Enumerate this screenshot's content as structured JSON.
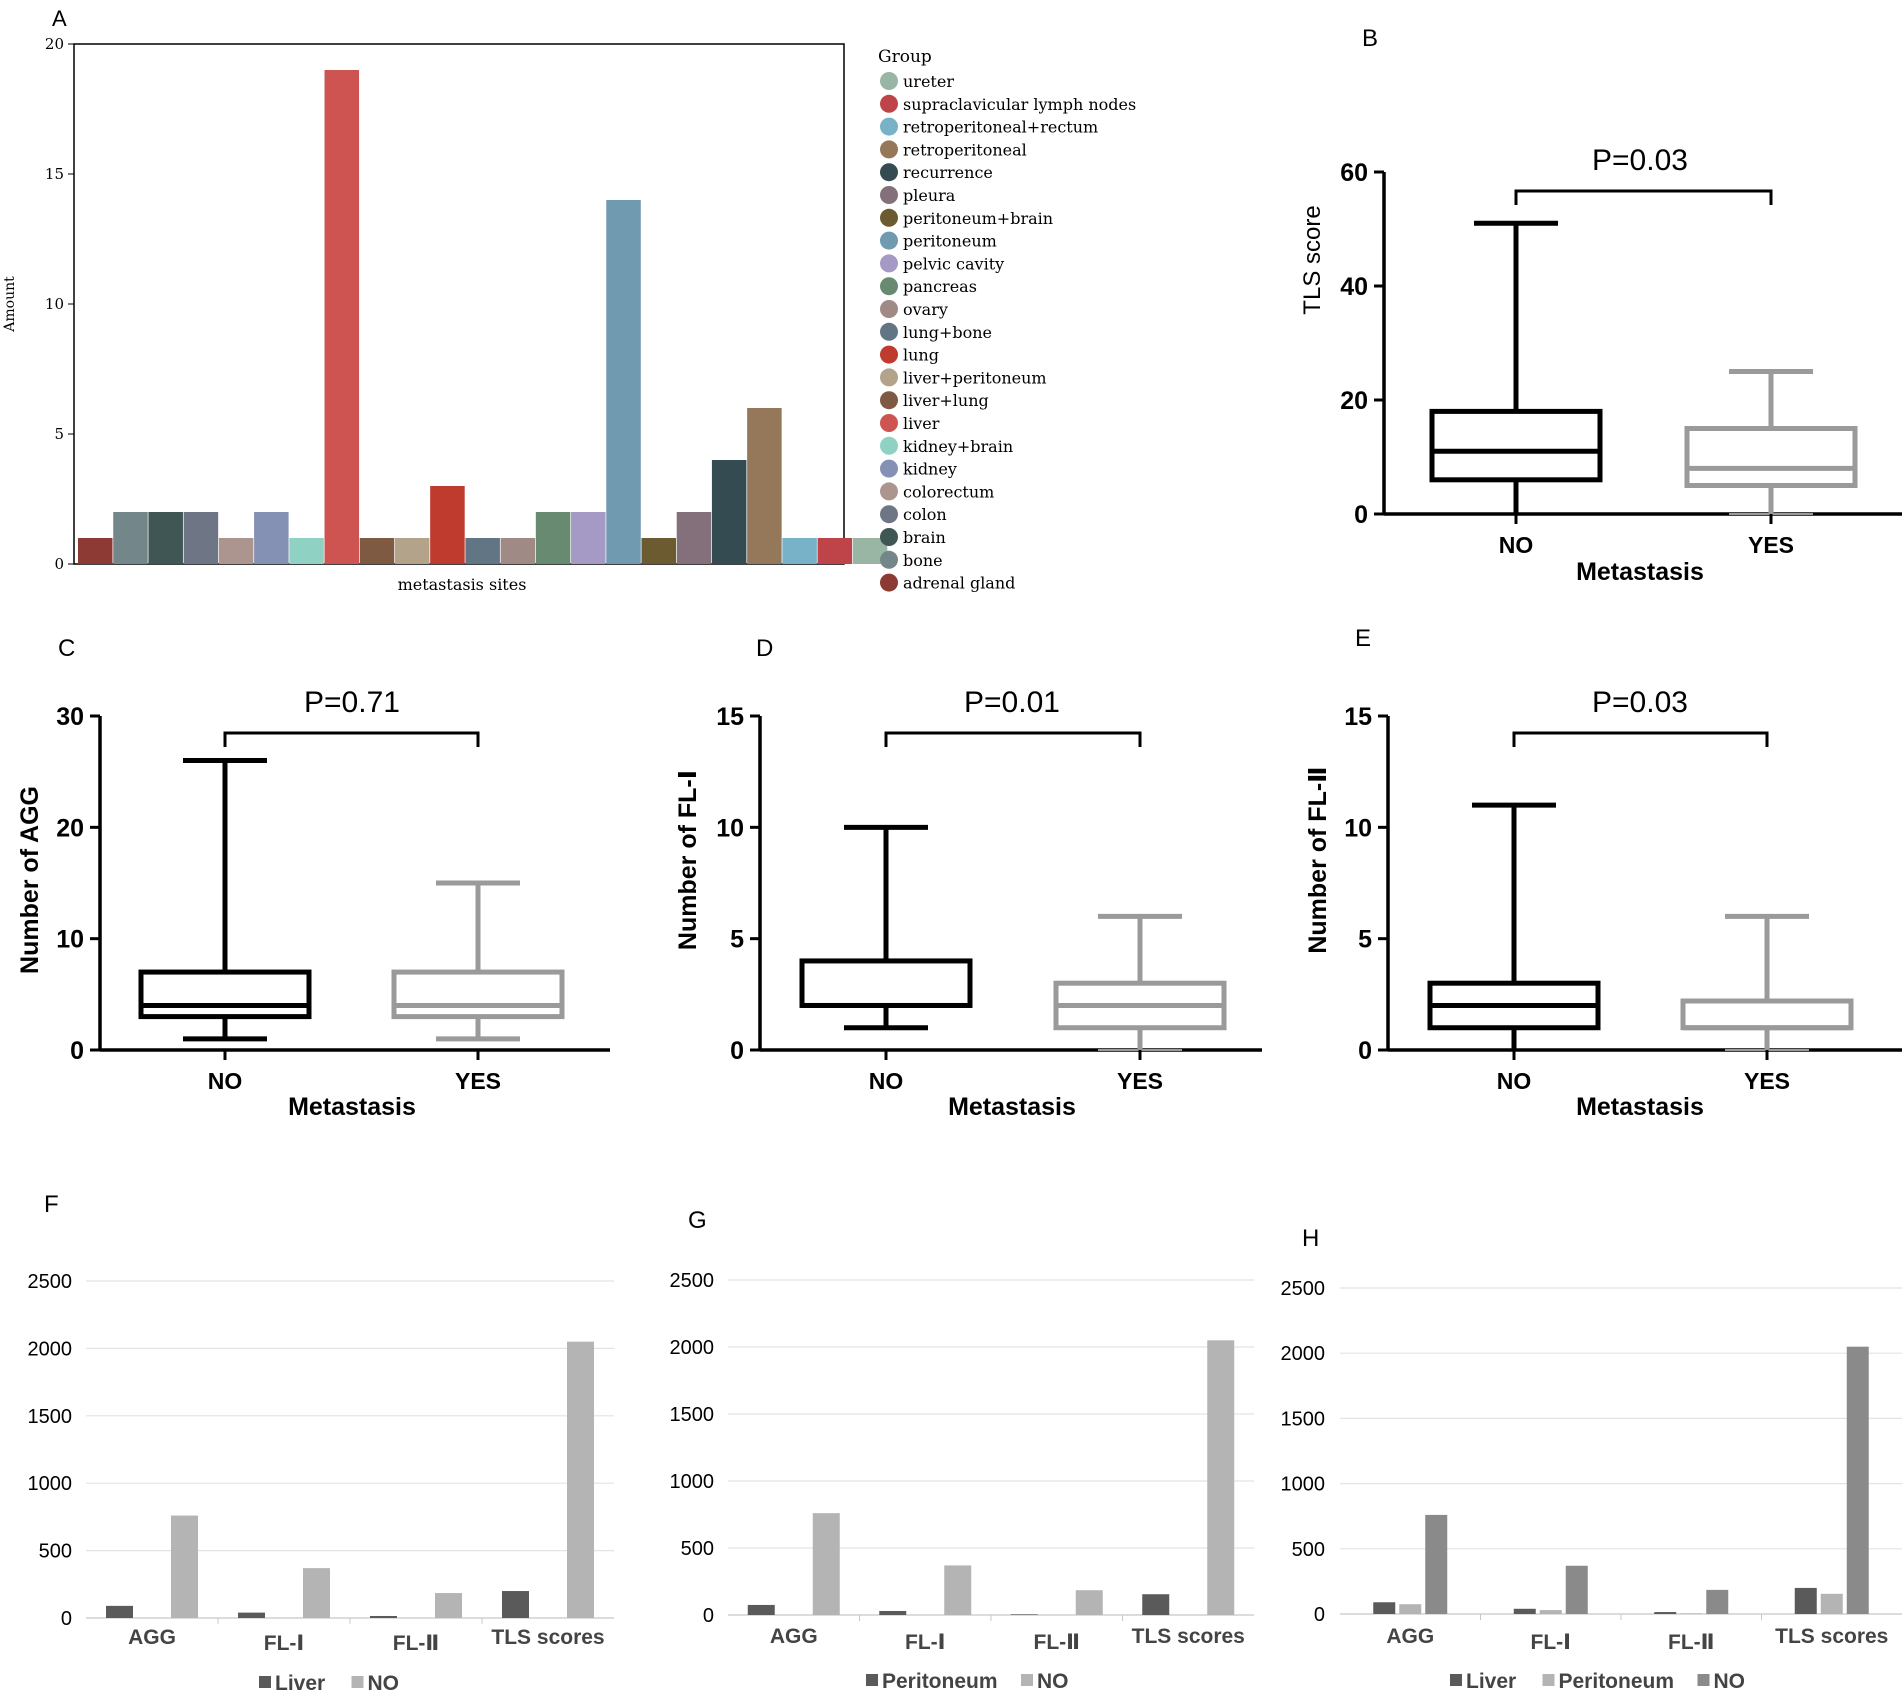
{
  "chart_data": [
    {
      "id": "A",
      "panel_label": "A",
      "type": "bar",
      "ylabel": "Amount",
      "xlabel": "metastasis sites",
      "ylim": [
        0,
        20
      ],
      "yticks": [
        "0",
        "5",
        "10",
        "15",
        "20"
      ],
      "legend_title": "Group",
      "legend_placement": "right",
      "categories": [
        "adrenal gland",
        "bone",
        "brain",
        "colon",
        "colorectum",
        "kidney",
        "kidney+brain",
        "liver",
        "liver+lung",
        "liver+peritoneum",
        "lung",
        "lung+bone",
        "ovary",
        "pancreas",
        "pelvic cavity",
        "peritoneum",
        "peritoneum+brain",
        "pleura",
        "recurrence",
        "retroperitoneal",
        "retroperitoneal+rectum",
        "supraclavicular lymph nodes",
        "ureter"
      ],
      "legend_order": [
        "ureter",
        "supraclavicular lymph nodes",
        "retroperitoneal+rectum",
        "retroperitoneal",
        "recurrence",
        "pleura",
        "peritoneum+brain",
        "peritoneum",
        "pelvic cavity",
        "pancreas",
        "ovary",
        "lung+bone",
        "lung",
        "liver+peritoneum",
        "liver+lung",
        "liver",
        "kidney+brain",
        "kidney",
        "colorectum",
        "colon",
        "brain",
        "bone",
        "adrenal gland"
      ],
      "bar_values": [
        1,
        2,
        2,
        2,
        1,
        2,
        1,
        19,
        1,
        1,
        3,
        1,
        1,
        2,
        2,
        14,
        1,
        2,
        4,
        6,
        1,
        1,
        1
      ],
      "colors": [
        "#8E3A34",
        "#73878B",
        "#3F5654",
        "#6E7585",
        "#AB958E",
        "#8590B5",
        "#8FD1C3",
        "#CD5450",
        "#7E5A42",
        "#B3A38B",
        "#BE3B2D",
        "#627584",
        "#A08A86",
        "#688A70",
        "#A59AC6",
        "#6F9AAF",
        "#6C5A31",
        "#84707A",
        "#344C51",
        "#957859",
        "#78B2C8",
        "#BF4449",
        "#99B6A5"
      ]
    },
    {
      "id": "B",
      "panel_label": "B",
      "type": "box",
      "ylabel": "TLS score",
      "xlabel": "Metastasis",
      "ylim": [
        0,
        60
      ],
      "yticks": [
        "0",
        "20",
        "40",
        "60"
      ],
      "pvalue": "P=0.03",
      "categories": [
        "NO",
        "YES"
      ],
      "boxes": [
        {
          "name": "NO",
          "min": 0,
          "q1": 6,
          "median": 11,
          "q3": 18,
          "max": 51,
          "color": "#000000"
        },
        {
          "name": "YES",
          "min": 0,
          "q1": 5,
          "median": 8,
          "q3": 15,
          "max": 25,
          "color": "#9a9a9a"
        }
      ]
    },
    {
      "id": "C",
      "panel_label": "C",
      "type": "box",
      "ylabel": "Number of AGG",
      "xlabel": "Metastasis",
      "ylim": [
        0,
        30
      ],
      "yticks": [
        "0",
        "10",
        "20",
        "30"
      ],
      "pvalue": "P=0.71",
      "categories": [
        "NO",
        "YES"
      ],
      "boxes": [
        {
          "name": "NO",
          "min": 1,
          "q1": 3,
          "median": 4,
          "q3": 7,
          "max": 26,
          "color": "#000000"
        },
        {
          "name": "YES",
          "min": 1,
          "q1": 3,
          "median": 4,
          "q3": 7,
          "max": 15,
          "color": "#9a9a9a"
        }
      ]
    },
    {
      "id": "D",
      "panel_label": "D",
      "type": "box",
      "ylabel": "Number of  FL-Ⅰ",
      "xlabel": "Metastasis",
      "ylim": [
        0,
        15
      ],
      "yticks": [
        "0",
        "5",
        "10",
        "15"
      ],
      "pvalue": "P=0.01",
      "categories": [
        "NO",
        "YES"
      ],
      "boxes": [
        {
          "name": "NO",
          "min": 1,
          "q1": 2,
          "median": 2,
          "q3": 4,
          "max": 10,
          "color": "#000000"
        },
        {
          "name": "YES",
          "min": 0,
          "q1": 1,
          "median": 2,
          "q3": 3,
          "max": 6,
          "color": "#9a9a9a"
        }
      ]
    },
    {
      "id": "E",
      "panel_label": "E",
      "type": "box",
      "ylabel": "Number of  FL-Ⅱ",
      "xlabel": "Metastasis",
      "ylim": [
        0,
        15
      ],
      "yticks": [
        "0",
        "5",
        "10",
        "15"
      ],
      "pvalue": "P=0.03",
      "categories": [
        "NO",
        "YES"
      ],
      "boxes": [
        {
          "name": "NO",
          "min": 0,
          "q1": 1,
          "median": 2,
          "q3": 3,
          "max": 11,
          "color": "#000000"
        },
        {
          "name": "YES",
          "min": 0,
          "q1": 1,
          "median": 1,
          "q3": 2.2,
          "max": 6,
          "color": "#9a9a9a"
        }
      ]
    },
    {
      "id": "F",
      "panel_label": "F",
      "type": "bar",
      "ylim": [
        0,
        2500
      ],
      "yticks": [
        "0",
        "500",
        "1000",
        "1500",
        "2000",
        "2500"
      ],
      "categories": [
        "AGG",
        "FL-Ⅰ",
        "FL-Ⅱ",
        "TLS scores"
      ],
      "series": [
        {
          "name": "Liver",
          "values": [
            90,
            40,
            15,
            200
          ],
          "color": "#5a5a5a"
        },
        {
          "name": "NO",
          "values": [
            760,
            370,
            185,
            2050
          ],
          "color": "#b4b4b4"
        }
      ]
    },
    {
      "id": "G",
      "panel_label": "G",
      "type": "bar",
      "ylim": [
        0,
        2500
      ],
      "yticks": [
        "0",
        "500",
        "1000",
        "1500",
        "2000",
        "2500"
      ],
      "categories": [
        "AGG",
        "FL-Ⅰ",
        "FL-Ⅱ",
        "TLS scores"
      ],
      "series": [
        {
          "name": "Peritoneum",
          "values": [
            75,
            30,
            5,
            155
          ],
          "color": "#5a5a5a"
        },
        {
          "name": "NO",
          "values": [
            760,
            370,
            185,
            2050
          ],
          "color": "#b4b4b4"
        }
      ]
    },
    {
      "id": "H",
      "panel_label": "H",
      "type": "bar",
      "ylim": [
        0,
        2500
      ],
      "yticks": [
        "0",
        "500",
        "1000",
        "1500",
        "2000",
        "2500"
      ],
      "categories": [
        "AGG",
        "FL-Ⅰ",
        "FL-Ⅱ",
        "TLS scores"
      ],
      "series": [
        {
          "name": "Liver",
          "values": [
            90,
            40,
            15,
            200
          ],
          "color": "#5a5a5a"
        },
        {
          "name": "Peritoneum",
          "values": [
            75,
            30,
            5,
            155
          ],
          "color": "#b4b4b4"
        },
        {
          "name": "NO",
          "values": [
            760,
            370,
            185,
            2050
          ],
          "color": "#8a8a8a"
        }
      ]
    }
  ]
}
